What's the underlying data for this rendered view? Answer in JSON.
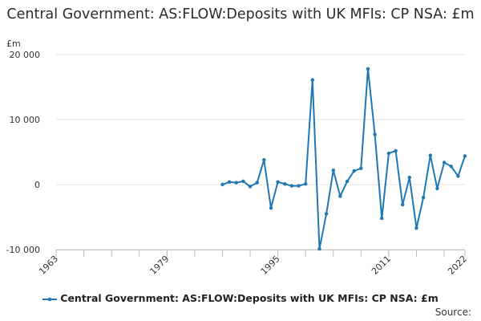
{
  "chart_data": {
    "type": "line",
    "title": "Central Government: AS:FLOW:Deposits with UK MFIs: CP NSA: £m",
    "y_unit": "£m",
    "ylim": [
      -10000,
      20000
    ],
    "y_ticks": [
      -10000,
      0,
      10000,
      20000
    ],
    "y_tick_labels": [
      "-10 000",
      "0",
      "10 000",
      "20 000"
    ],
    "xlim": [
      1963,
      2022
    ],
    "x_ticks": [
      1963,
      1979,
      1995,
      2011,
      2022
    ],
    "x_tick_labels": [
      "1963",
      "1979",
      "1995",
      "2011",
      "2022"
    ],
    "grid": true,
    "legend_position": "bottom",
    "color": "#1f77b4",
    "series": [
      {
        "name": "Central Government: AS:FLOW:Deposits with UK MFIs: CP NSA: £m",
        "x": [
          1987,
          1988,
          1989,
          1990,
          1991,
          1992,
          1993,
          1994,
          1995,
          1996,
          1997,
          1998,
          1999,
          2000,
          2001,
          2002,
          2003,
          2004,
          2005,
          2006,
          2007,
          2008,
          2009,
          2010,
          2011,
          2012,
          2013,
          2014,
          2015,
          2016,
          2017,
          2018,
          2019,
          2020,
          2021,
          2022
        ],
        "values": [
          0,
          400,
          300,
          500,
          -300,
          300,
          3800,
          -3600,
          400,
          100,
          -200,
          -200,
          100,
          16100,
          -9900,
          -4500,
          2200,
          -1800,
          500,
          2100,
          2500,
          17800,
          7700,
          -5200,
          4800,
          5200,
          -3100,
          1100,
          -6700,
          -2000,
          4500,
          -600,
          3400,
          2800,
          1300,
          4400
        ]
      }
    ]
  },
  "source_label": "Source:"
}
